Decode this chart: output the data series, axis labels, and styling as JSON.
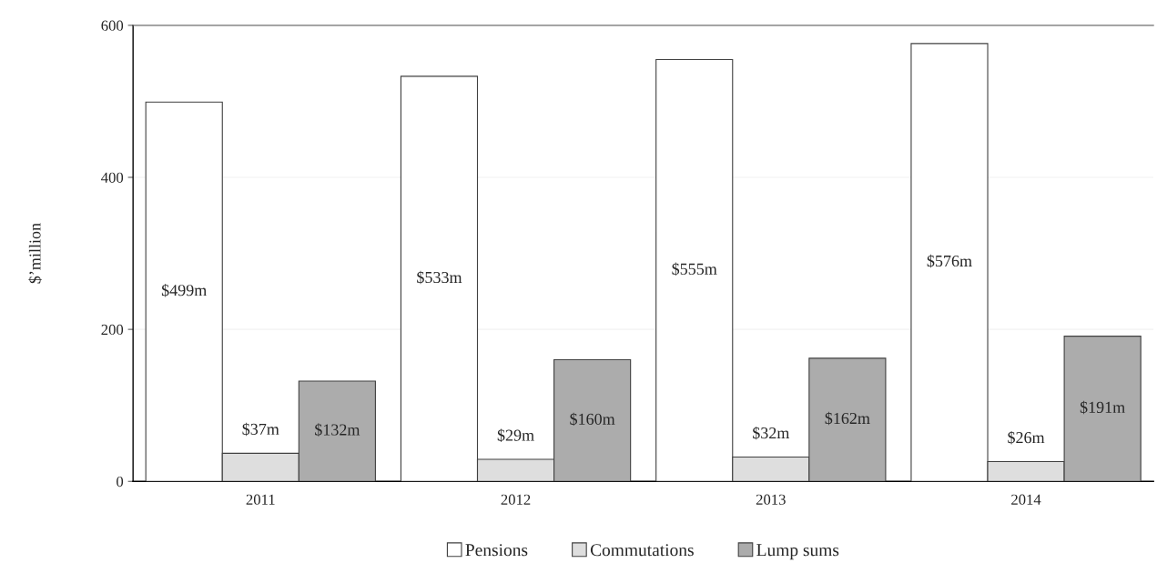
{
  "chart_data": {
    "type": "bar",
    "ylabel": "$’million",
    "categories": [
      "2011",
      "2012",
      "2013",
      "2014"
    ],
    "series": [
      {
        "name": "Pensions",
        "color": "#ffffff",
        "values": [
          499,
          533,
          555,
          576
        ],
        "value_labels": [
          "$499m",
          "$533m",
          "$555m",
          "$576m"
        ]
      },
      {
        "name": "Commutations",
        "color": "#dedede",
        "values": [
          37,
          29,
          32,
          26
        ],
        "value_labels": [
          "$37m",
          "$29m",
          "$32m",
          "$26m"
        ]
      },
      {
        "name": "Lump sums",
        "color": "#acacac",
        "values": [
          132,
          160,
          162,
          191
        ],
        "value_labels": [
          "$132m",
          "$160m",
          "$162m",
          "$191m"
        ]
      }
    ],
    "ylim": [
      0,
      600
    ],
    "yticks": [
      0,
      200,
      400,
      600
    ],
    "grid": "y",
    "legend": "bottom"
  }
}
